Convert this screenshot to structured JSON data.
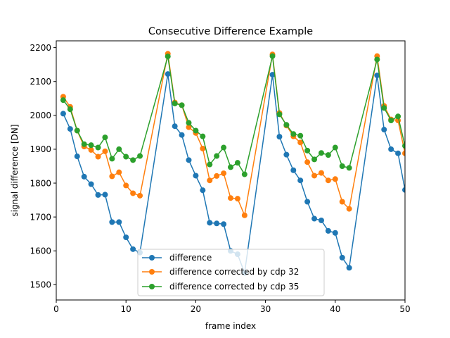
{
  "chart_data": {
    "type": "line",
    "title": "Consecutive Difference Example",
    "xlabel": "frame index",
    "ylabel": "signal difference [DN]",
    "xlim": [
      0,
      50
    ],
    "ylim": [
      1455,
      2220
    ],
    "xticks": [
      0,
      10,
      20,
      30,
      40,
      50
    ],
    "yticks": [
      1500,
      1600,
      1700,
      1800,
      1900,
      2000,
      2100,
      2200
    ],
    "grid": false,
    "legend_position": "lower-center",
    "series": [
      {
        "name": "difference",
        "color": "#1f77b4",
        "x": [
          1,
          2,
          3,
          4,
          5,
          6,
          7,
          8,
          9,
          10,
          11,
          12,
          16,
          17,
          18,
          19,
          20,
          21,
          22,
          23,
          24,
          25,
          26,
          27,
          31,
          32,
          33,
          34,
          35,
          36,
          37,
          38,
          39,
          40,
          41,
          42,
          46,
          47,
          48,
          49,
          50
        ],
        "y": [
          2005,
          1960,
          1879,
          1819,
          1797,
          1765,
          1766,
          1685,
          1685,
          1640,
          1605,
          1595,
          2122,
          1968,
          1942,
          1868,
          1822,
          1779,
          1683,
          1681,
          1679,
          1600,
          1590,
          1535,
          2120,
          1937,
          1884,
          1838,
          1808,
          1745,
          1695,
          1690,
          1659,
          1653,
          1580,
          1550,
          2118,
          1958,
          1900,
          1888,
          1780
        ]
      },
      {
        "name": "difference corrected by cdp 32",
        "color": "#ff7f0e",
        "x": [
          1,
          2,
          3,
          4,
          5,
          6,
          7,
          8,
          9,
          10,
          11,
          12,
          16,
          17,
          18,
          19,
          20,
          21,
          22,
          23,
          24,
          25,
          26,
          27,
          31,
          32,
          33,
          34,
          35,
          36,
          37,
          38,
          39,
          40,
          41,
          42,
          46,
          47,
          48,
          49,
          50
        ],
        "y": [
          2055,
          2025,
          1955,
          1908,
          1898,
          1878,
          1894,
          1820,
          1832,
          1793,
          1770,
          1763,
          2182,
          2038,
          2030,
          1965,
          1948,
          1902,
          1808,
          1821,
          1829,
          1756,
          1754,
          1705,
          2180,
          2007,
          1970,
          1938,
          1920,
          1862,
          1822,
          1830,
          1808,
          1812,
          1745,
          1724,
          2175,
          2028,
          1988,
          1985,
          1888
        ]
      },
      {
        "name": "difference corrected by cdp 35",
        "color": "#2ca02c",
        "x": [
          1,
          2,
          3,
          4,
          5,
          6,
          7,
          8,
          9,
          10,
          11,
          12,
          16,
          17,
          18,
          19,
          20,
          21,
          22,
          23,
          24,
          25,
          26,
          27,
          31,
          32,
          33,
          34,
          35,
          36,
          37,
          38,
          39,
          40,
          41,
          42,
          46,
          47,
          48,
          49,
          50
        ],
        "y": [
          2045,
          2018,
          1955,
          1915,
          1912,
          1905,
          1935,
          1872,
          1900,
          1878,
          1868,
          1880,
          2174,
          2035,
          2030,
          1978,
          1955,
          1938,
          1855,
          1880,
          1905,
          1847,
          1860,
          1826,
          2175,
          2003,
          1972,
          1945,
          1940,
          1896,
          1870,
          1889,
          1883,
          1905,
          1850,
          1845,
          2165,
          2022,
          1985,
          1997,
          1910
        ]
      }
    ]
  }
}
